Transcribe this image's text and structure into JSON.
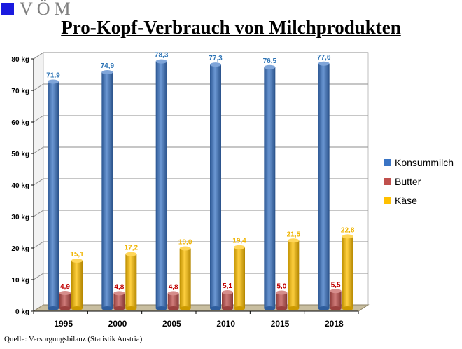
{
  "logo": {
    "text": "VÖM"
  },
  "source": "Quelle:  Versorgungsbilanz (Statistik Austria)",
  "chart_data": {
    "type": "bar",
    "title": "Pro-Kopf-Verbrauch von Milchprodukten",
    "categories": [
      "1995",
      "2000",
      "2005",
      "2010",
      "2015",
      "2018"
    ],
    "series": [
      {
        "name": "Konsummilch",
        "color": "#3a74c4",
        "label_color": "#2e74b5",
        "values": [
          71.9,
          74.9,
          78.3,
          77.3,
          76.5,
          77.6
        ],
        "labels": [
          "71,9",
          "74,9",
          "78,3",
          "77,3",
          "76,5",
          "77,6"
        ]
      },
      {
        "name": "Butter",
        "color": "#c0504d",
        "label_color": "#c00000",
        "values": [
          4.9,
          4.8,
          4.8,
          5.1,
          5.0,
          5.5
        ],
        "labels": [
          "4,9",
          "4,8",
          "4,8",
          "5,1",
          "5,0",
          "5,5"
        ]
      },
      {
        "name": "Käse",
        "color": "#ffc000",
        "label_color": "#f0b400",
        "values": [
          15.1,
          17.2,
          19.0,
          19.4,
          21.5,
          22.8
        ],
        "labels": [
          "15,1",
          "17,2",
          "19,0",
          "19,4",
          "21,5",
          "22,8"
        ]
      }
    ],
    "ylim": [
      0,
      80
    ],
    "yticks": [
      0,
      10,
      20,
      30,
      40,
      50,
      60,
      70,
      80
    ],
    "ytick_labels": [
      "0 kg",
      "10 kg",
      "20 kg",
      "30 kg",
      "40 kg",
      "50 kg",
      "60 kg",
      "70 kg",
      "80 kg"
    ],
    "grid": true,
    "legend": "right",
    "floor_color": "#c8bea0"
  }
}
